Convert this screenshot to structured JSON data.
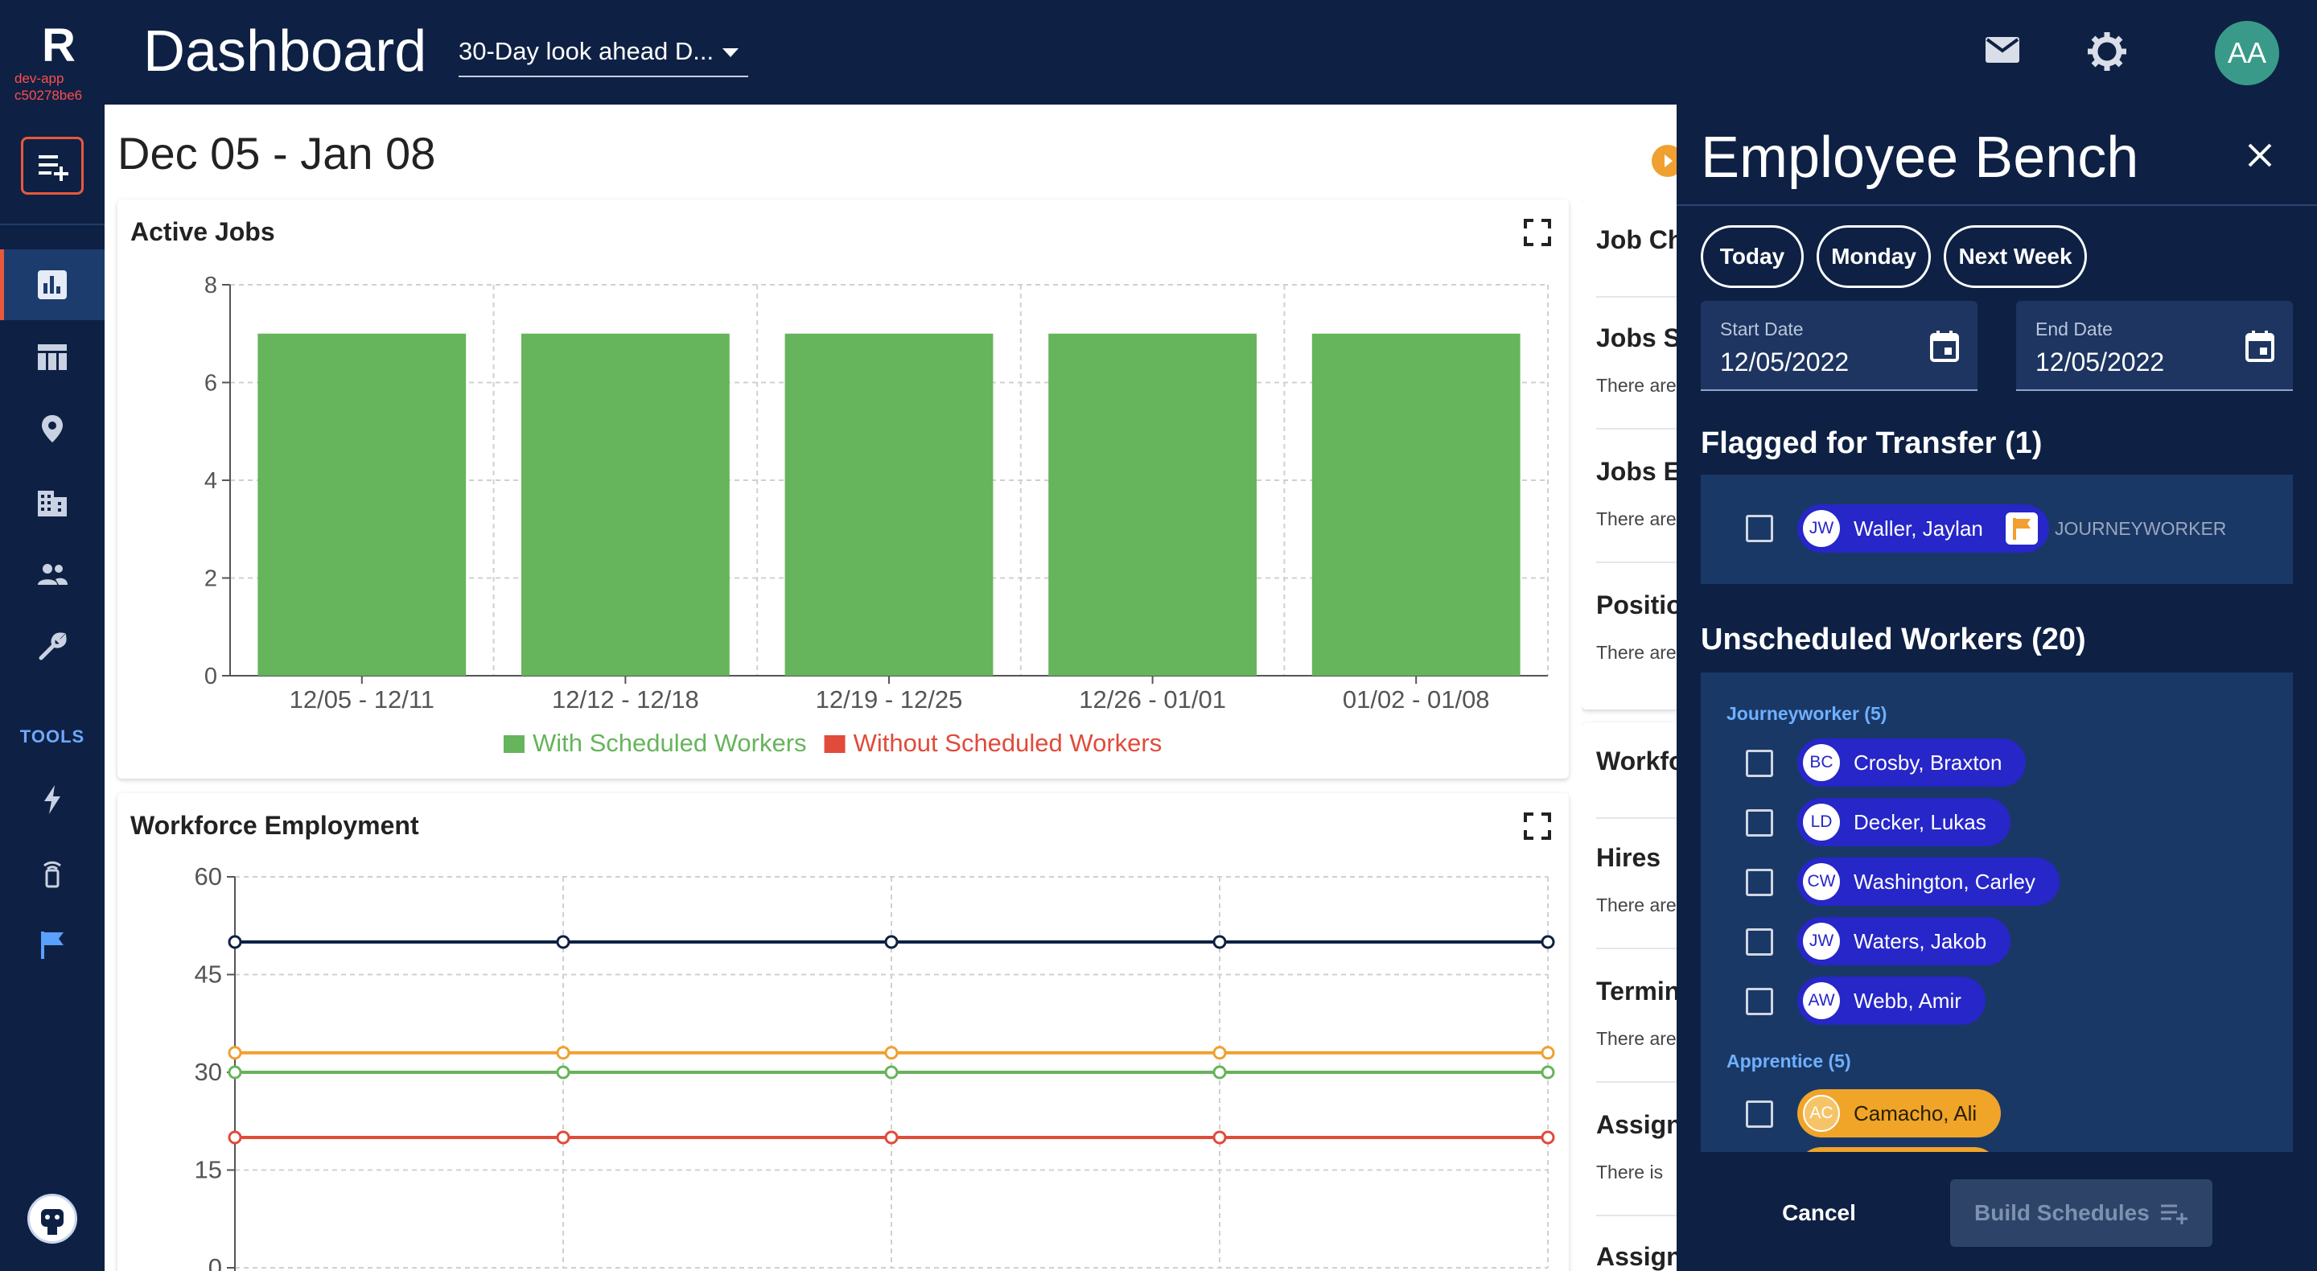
{
  "app": {
    "logo_letter": "R",
    "env_line1": "dev-app",
    "env_line2": "c50278be6",
    "page_title": "Dashboard",
    "view_select": "30-Day look ahead D...",
    "user_initials": "AA"
  },
  "nav": {
    "tools_label": "TOOLS",
    "items": [
      "bar-chart",
      "table",
      "location",
      "building",
      "people",
      "wrench",
      "lightning",
      "beacon",
      "flag"
    ]
  },
  "main": {
    "date_range": "Dec 05 - Jan 08"
  },
  "active_jobs": {
    "title": "Active Jobs"
  },
  "workforce": {
    "title": "Workforce Employment"
  },
  "right_column": {
    "cards": [
      {
        "title": "Job Ch",
        "rows": []
      },
      {
        "title": "Jobs S",
        "sub": "There are"
      },
      {
        "title": "Jobs E",
        "sub": "There are"
      },
      {
        "title": "Positio",
        "sub": "There are"
      },
      {
        "title": "Workfo",
        "rows": []
      },
      {
        "title": "Hires",
        "sub": "There are"
      },
      {
        "title": "Termin",
        "sub": "There are"
      },
      {
        "title": "Assign",
        "sub": "There is"
      },
      {
        "title": "Assign",
        "sub": ""
      }
    ]
  },
  "bench": {
    "title": "Employee Bench",
    "quick_ranges": [
      "Today",
      "Monday",
      "Next Week"
    ],
    "start_label": "Start Date",
    "start_value": "12/05/2022",
    "end_label": "End Date",
    "end_value": "12/05/2022",
    "flagged_title": "Flagged for Transfer (1)",
    "flagged": [
      {
        "initials": "JW",
        "name": "Waller, Jaylan",
        "role": "JOURNEYWORKER"
      }
    ],
    "unscheduled_title": "Unscheduled Workers (20)",
    "groups": [
      {
        "label": "Journeyworker (5)",
        "workers": [
          {
            "initials": "BC",
            "name": "Crosby, Braxton"
          },
          {
            "initials": "LD",
            "name": "Decker, Lukas"
          },
          {
            "initials": "CW",
            "name": "Washington, Carley"
          },
          {
            "initials": "JW",
            "name": "Waters, Jakob"
          },
          {
            "initials": "AW",
            "name": "Webb, Amir"
          }
        ]
      },
      {
        "label": "Apprentice (5)",
        "workers": [
          {
            "initials": "AC",
            "name": "Camacho, Ali"
          }
        ]
      }
    ],
    "cancel_label": "Cancel",
    "build_label": "Build Schedules"
  },
  "chart_data": [
    {
      "type": "bar",
      "title": "Active Jobs",
      "categories": [
        "12/05 - 12/11",
        "12/12 - 12/18",
        "12/19 - 12/25",
        "12/26 - 01/01",
        "01/02 - 01/08"
      ],
      "series": [
        {
          "name": "With Scheduled Workers",
          "color": "#66b45b",
          "values": [
            7,
            7,
            7,
            7,
            7
          ]
        },
        {
          "name": "Without Scheduled Workers",
          "color": "#e04b3a",
          "values": [
            0,
            0,
            0,
            0,
            0
          ]
        }
      ],
      "ylim": [
        0,
        8
      ],
      "yticks": [
        0,
        2,
        4,
        6,
        8
      ],
      "grid": true,
      "legend": "bottom"
    },
    {
      "type": "line",
      "title": "Workforce Employment",
      "x_points": 5,
      "series": [
        {
          "color": "#0e2144",
          "values": [
            50,
            50,
            50,
            50,
            50
          ]
        },
        {
          "color": "#f0a030",
          "values": [
            33,
            33,
            33,
            33,
            33
          ]
        },
        {
          "color": "#66b45b",
          "values": [
            30,
            30,
            30,
            30,
            30
          ]
        },
        {
          "color": "#e04b3a",
          "values": [
            20,
            20,
            20,
            20,
            20
          ]
        }
      ],
      "ylim": [
        0,
        60
      ],
      "yticks": [
        0,
        15,
        30,
        45,
        60
      ],
      "grid": true
    }
  ]
}
